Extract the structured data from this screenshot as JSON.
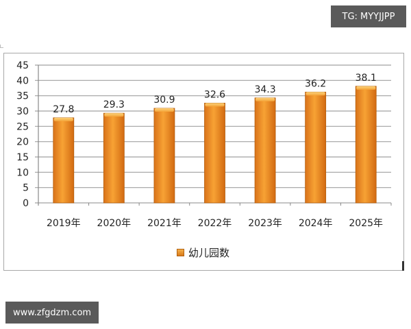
{
  "watermarks": {
    "top_right": "TG: MYYJJPP",
    "bottom_left": "www.zfgdzm.com"
  },
  "legend": {
    "label": "幼儿园数"
  },
  "colors": {
    "bar_fill": "#f28c1e",
    "bar_edge": "#b5600e",
    "grid": "#a0a0a0"
  },
  "chart_data": {
    "type": "bar",
    "title": "",
    "xlabel": "",
    "ylabel": "",
    "categories": [
      "2019年",
      "2020年",
      "2021年",
      "2022年",
      "2023年",
      "2024年",
      "2025年"
    ],
    "series": [
      {
        "name": "幼儿园数",
        "values": [
          27.8,
          29.3,
          30.9,
          32.6,
          34.3,
          36.2,
          38.1
        ]
      }
    ],
    "ylim": [
      0,
      45
    ],
    "yticks": [
      0,
      5,
      10,
      15,
      20,
      25,
      30,
      35,
      40,
      45
    ],
    "grid": true,
    "legend_position": "bottom",
    "data_labels": [
      "27.8",
      "29.3",
      "30.9",
      "32.6",
      "34.3",
      "36.2",
      "38.1"
    ]
  }
}
